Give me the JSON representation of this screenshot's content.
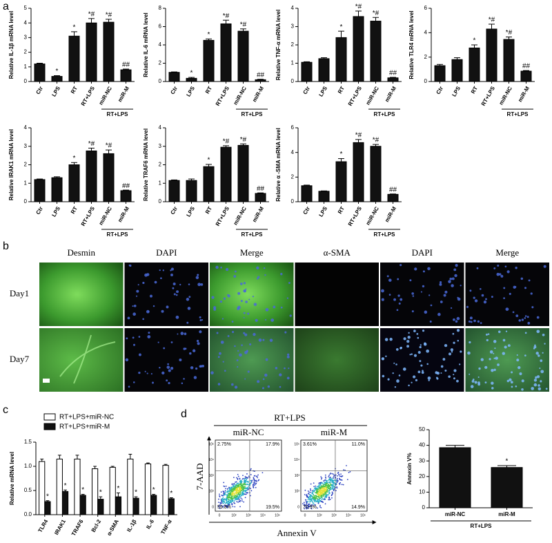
{
  "panel_labels": {
    "a": "a",
    "b": "b",
    "c": "c",
    "d": "d"
  },
  "chart_data": [
    {
      "type": "bar",
      "y_label": "Relative IL-1β mRNA level",
      "categories": [
        "Ctr",
        "LPS",
        "RT",
        "RT+LPS",
        "miR-NC",
        "miR-M"
      ],
      "group_label": "RT+LPS",
      "values": [
        1.2,
        0.35,
        3.1,
        4.0,
        4.05,
        0.8
      ],
      "errors": [
        0.05,
        0.05,
        0.3,
        0.3,
        0.2,
        0.05
      ],
      "annotations": [
        null,
        "*",
        "*",
        "*#",
        "*#",
        "##"
      ],
      "color": "#111111",
      "ylim": [
        0,
        5
      ],
      "yticks": [
        0,
        1,
        2,
        3,
        4,
        5
      ]
    },
    {
      "type": "bar",
      "y_label": "Relative IL-6 mRNA level",
      "categories": [
        "Ctr",
        "LPS",
        "RT",
        "RT+LPS",
        "miR-NC",
        "miR-M"
      ],
      "group_label": "RT+LPS",
      "values": [
        1.0,
        0.35,
        4.5,
        6.3,
        5.5,
        0.2
      ],
      "errors": [
        0.05,
        0.1,
        0.15,
        0.4,
        0.25,
        0.05
      ],
      "annotations": [
        null,
        "*",
        "*",
        "*#",
        "*#",
        "##"
      ],
      "color": "#111111",
      "ylim": [
        0,
        8
      ],
      "yticks": [
        0,
        2,
        4,
        6,
        8
      ]
    },
    {
      "type": "bar",
      "y_label": "Relative TNF-α mRNA level",
      "categories": [
        "Ctr",
        "LPS",
        "RT",
        "RT+LPS",
        "miR-NC",
        "miR-M"
      ],
      "group_label": "RT+LPS",
      "values": [
        1.05,
        1.25,
        2.4,
        3.55,
        3.3,
        0.2
      ],
      "errors": [
        0.03,
        0.05,
        0.35,
        0.3,
        0.2,
        0.03
      ],
      "annotations": [
        null,
        null,
        "*",
        "*#",
        "*#",
        "##"
      ],
      "color": "#111111",
      "ylim": [
        0,
        4
      ],
      "yticks": [
        0,
        1,
        2,
        3,
        4
      ]
    },
    {
      "type": "bar",
      "y_label": "Relative TLR4 mRNA level",
      "categories": [
        "Ctr",
        "LPS",
        "RT",
        "RT+LPS",
        "miR-NC",
        "miR-M"
      ],
      "group_label": "RT+LPS",
      "values": [
        1.3,
        1.8,
        2.75,
        4.3,
        3.45,
        0.85
      ],
      "errors": [
        0.1,
        0.15,
        0.25,
        0.4,
        0.2,
        0.05
      ],
      "annotations": [
        null,
        null,
        "*",
        "*#",
        "*#",
        "##"
      ],
      "color": "#111111",
      "ylim": [
        0,
        6
      ],
      "yticks": [
        0,
        2,
        4,
        6
      ]
    },
    {
      "type": "bar",
      "y_label": "Relative IRAK1 mRNA level",
      "categories": [
        "Ctr",
        "LPS",
        "RT",
        "RT+LPS",
        "miR-NC",
        "miR-M"
      ],
      "group_label": "RT+LPS",
      "values": [
        1.2,
        1.3,
        2.0,
        2.75,
        2.6,
        0.6
      ],
      "errors": [
        0.03,
        0.05,
        0.12,
        0.15,
        0.2,
        0.03
      ],
      "annotations": [
        null,
        null,
        "*",
        "*#",
        "*#",
        "##"
      ],
      "color": "#111111",
      "ylim": [
        0,
        4
      ],
      "yticks": [
        0,
        1,
        2,
        3,
        4
      ]
    },
    {
      "type": "bar",
      "y_label": "Relative TRAF6 mRNA level",
      "categories": [
        "Ctr",
        "LPS",
        "RT",
        "RT+LPS",
        "miR-NC",
        "miR-M"
      ],
      "group_label": "RT+LPS",
      "values": [
        1.15,
        1.15,
        1.9,
        2.95,
        3.05,
        0.45
      ],
      "errors": [
        0.03,
        0.08,
        0.12,
        0.08,
        0.08,
        0.03
      ],
      "annotations": [
        null,
        null,
        "*",
        "*#",
        "*#",
        "##"
      ],
      "color": "#111111",
      "ylim": [
        0,
        4
      ],
      "yticks": [
        0,
        1,
        2,
        3,
        4
      ]
    },
    {
      "type": "bar",
      "y_label": "Relative α -SMA mRNA level",
      "categories": [
        "Ctr",
        "LPS",
        "RT",
        "RT+LPS",
        "miR-NC",
        "miR-M"
      ],
      "group_label": "RT+LPS",
      "values": [
        1.3,
        0.85,
        3.25,
        4.8,
        4.5,
        0.6
      ],
      "errors": [
        0.05,
        0.03,
        0.25,
        0.25,
        0.15,
        0.03
      ],
      "annotations": [
        null,
        null,
        "*",
        "*#",
        "*#",
        "##"
      ],
      "color": "#111111",
      "ylim": [
        0,
        6
      ],
      "yticks": [
        0,
        2,
        4,
        6
      ]
    },
    {
      "type": "bar",
      "y_label": "Relative mRNA level",
      "categories": [
        "TLR4",
        "IRAK1",
        "TRAF6",
        "Bcl-2",
        "α-SMA",
        "IL-1β",
        "IL-6",
        "TNF-α"
      ],
      "series": [
        {
          "name": "RT+LPS+miR-NC",
          "color": "#ffffff",
          "values": [
            1.1,
            1.15,
            1.15,
            0.95,
            0.98,
            1.15,
            1.05,
            1.02
          ],
          "errors": [
            0.05,
            0.08,
            0.08,
            0.05,
            0.02,
            0.1,
            0.02,
            0.02
          ],
          "annotations": [
            null,
            null,
            null,
            null,
            null,
            null,
            null,
            null
          ]
        },
        {
          "name": "RT+LPS+miR-M",
          "color": "#111111",
          "values": [
            0.27,
            0.48,
            0.4,
            0.32,
            0.37,
            0.34,
            0.4,
            0.33
          ],
          "errors": [
            0.02,
            0.03,
            0.02,
            0.05,
            0.08,
            0.03,
            0.02,
            0.02
          ],
          "annotations": [
            "*",
            "*",
            "*",
            "*",
            "*",
            "*",
            "*",
            "*"
          ]
        }
      ],
      "ylim": [
        0,
        1.5
      ],
      "yticks": [
        {
          "value": 0,
          "label": "0.0"
        },
        {
          "value": 0.5,
          "label": "0.5"
        },
        {
          "value": 1,
          "label": "1.0"
        },
        {
          "value": 1.5,
          "label": "1.5"
        }
      ],
      "legend": "top-left"
    },
    {
      "type": "bar",
      "y_label": "Annexin V%",
      "categories": [
        "miR-NC",
        "miR-M"
      ],
      "group_label": "RT+LPS",
      "values": [
        38.5,
        25.8
      ],
      "errors": [
        1.5,
        1.2
      ],
      "annotations": [
        null,
        "*"
      ],
      "color": "#111111",
      "ylim": [
        0,
        50
      ],
      "yticks": [
        0,
        10,
        20,
        30,
        40,
        50
      ]
    }
  ],
  "panel_b": {
    "columns": [
      "Desmin",
      "DAPI",
      "Merge",
      "α-SMA",
      "DAPI",
      "Merge"
    ],
    "rows": [
      "Day1",
      "Day7"
    ]
  },
  "panel_d_flow": {
    "title": "RT+LPS",
    "x_label": "Annexin V",
    "y_label": "7-AAD",
    "ticks": [
      "0",
      "10²",
      "10³",
      "10⁴",
      "10⁵"
    ],
    "plots": [
      {
        "label": "miR-NC",
        "quadrants": [
          "2.75%",
          "17.9%",
          "59.8%",
          "19.5%"
        ]
      },
      {
        "label": "miR-M",
        "quadrants": [
          "3.61%",
          "11.0%",
          "70.5%",
          "14.9%"
        ]
      }
    ]
  }
}
